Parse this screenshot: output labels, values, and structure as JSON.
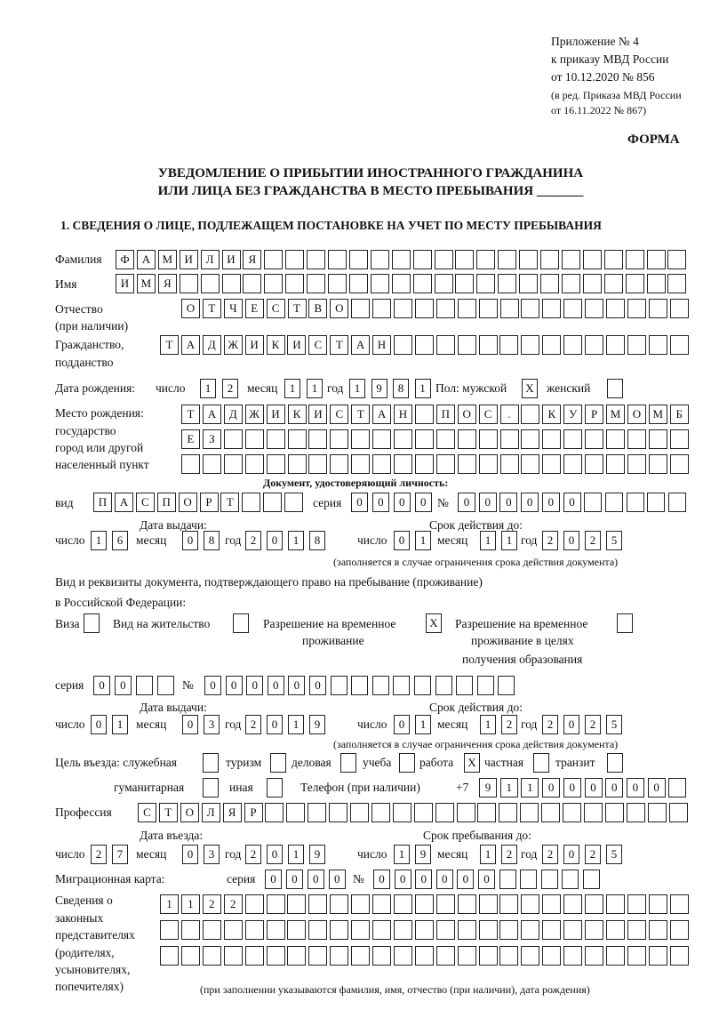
{
  "header": {
    "appendix": "Приложение № 4",
    "order": "к приказу МВД России",
    "order_date": "от 10.12.2020 № 856",
    "edition1": "(в ред. Приказа МВД России",
    "edition2": "от 16.11.2022 № 867)",
    "form": "ФОРМА",
    "title1": "УВЕДОМЛЕНИЕ О ПРИБЫТИИ ИНОСТРАННОГО ГРАЖДАНИНА",
    "title2": "ИЛИ ЛИЦА БЕЗ ГРАЖДАНСТВА В МЕСТО ПРЕБЫВАНИЯ _______",
    "section1": "1. СВЕДЕНИЯ О ЛИЦЕ, ПОДЛЕЖАЩЕМ ПОСТАНОВКЕ НА УЧЕТ ПО МЕСТУ ПРЕБЫВАНИЯ"
  },
  "labels": {
    "surname": "Фамилия",
    "name": "Имя",
    "patronymic": "Отчество",
    "patronymic2": "(при наличии)",
    "citizenship": "Гражданство,",
    "citizenship2": "подданство",
    "birth_date": "Дата рождения:",
    "day": "число",
    "month": "месяц",
    "year": "год",
    "sex": "Пол: мужской",
    "female": "женский",
    "birthplace1": "Место рождения:",
    "birthplace2": "государство",
    "birthplace3": "город или другой",
    "birthplace4": "населенный пункт",
    "id_doc": "Документ, удостоверяющий личность:",
    "kind": "вид",
    "series": "серия",
    "number": "№",
    "issue_date": "Дата выдачи:",
    "valid_until": "Срок действия до:",
    "valid_note": "(заполняется в случае ограничения срока действия документа)",
    "stay_doc1": "Вид и реквизиты документа, подтверждающего право на пребывание (проживание)",
    "stay_doc2": "в Российской Федерации:",
    "visa": "Виза",
    "residence": "Вид на жительство",
    "trp1": "Разрешение на временное",
    "trp2": "проживание",
    "trpe1": "Разрешение на временное",
    "trpe2": "проживание в целях",
    "trpe3": "получения образования",
    "purpose": "Цель въезда: служебная",
    "tourism": "туризм",
    "business": "деловая",
    "study": "учеба",
    "work": "работа",
    "private": "частная",
    "transit": "транзит",
    "humanitarian": "гуманитарная",
    "other": "иная",
    "phone": "Телефон (при наличии)",
    "phone_prefix": "+7",
    "profession": "Профессия",
    "entry_date": "Дата въезда:",
    "stay_until": "Срок пребывания до:",
    "migration_card": "Миграционная карта:",
    "reps1": "Сведения о",
    "reps2": "законных",
    "reps3": "представителях",
    "reps4": "(родителях,",
    "reps5": "усыновителях,",
    "reps6": "попечителях)",
    "reps_note": "(при заполнении указываются фамилия, имя, отчество (при наличии), дата рождения)"
  },
  "person": {
    "surname": "ФАМИЛИЯ",
    "name": "ИМЯ",
    "patronymic": "ОТЧЕСТВО",
    "citizenship": "ТАДЖИКИСТАН",
    "birth_date": {
      "day": "12",
      "month": "11",
      "year": "1981"
    },
    "sex_male": "X",
    "sex_female": "",
    "birthplace": [
      "ТАДЖИКИСТАН ПОС. КУРМОМБ",
      "ЕЗ",
      ""
    ]
  },
  "id_doc": {
    "kind": "ПАСПОРТ",
    "series": "0000",
    "number": "000000",
    "issue": {
      "day": "16",
      "month": "08",
      "year": "2018"
    },
    "valid": {
      "day": "01",
      "month": "11",
      "year": "2025"
    }
  },
  "stay_doc": {
    "visa": "",
    "residence": "",
    "trp": "X",
    "trp_edu": "",
    "series": "00",
    "number": "000000",
    "issue": {
      "day": "01",
      "month": "03",
      "year": "2019"
    },
    "valid": {
      "day": "01",
      "month": "12",
      "year": "2025"
    }
  },
  "purpose": {
    "official": "",
    "tourism": "",
    "business": "",
    "study": "",
    "work": "X",
    "private": "",
    "transit": "",
    "humanitarian": "",
    "other": ""
  },
  "phone": "911000000",
  "profession": "СТОЛЯР",
  "entry": {
    "day": "27",
    "month": "03",
    "year": "2019"
  },
  "stay_until": {
    "day": "19",
    "month": "12",
    "year": "2025"
  },
  "migration_card": {
    "series": "0000",
    "number": "000000"
  },
  "representatives": [
    "1122",
    "",
    ""
  ]
}
